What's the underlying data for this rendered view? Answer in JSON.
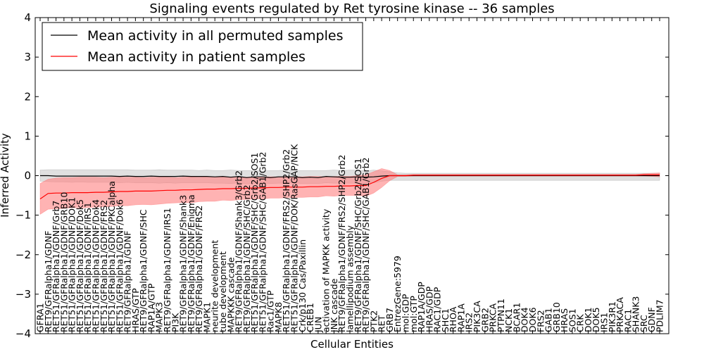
{
  "chart_data": {
    "type": "line",
    "title": "Signaling events regulated by Ret tyrosine kinase -- 36 samples",
    "xlabel": "Cellular Entities",
    "ylabel": "Inferred Activity",
    "ylim": [
      -4,
      4
    ],
    "yticks": [
      -4,
      -3,
      -2,
      -1,
      0,
      1,
      2,
      3,
      4
    ],
    "grid": false,
    "legend_position": "top-left",
    "categories": [
      "GFRA1",
      "RET9/GFRalpha1/GDNF",
      "RET51/GFRalpha1/GDNF/Grb7",
      "RET51/GFRalpha1/GDNF/GRB10",
      "RET51/GFRalpha1/GDNF/DOK1",
      "RET51/GFRalpha1/GDNF/Dok5",
      "RET51/GFRalpha1/GDNF/IRS1",
      "RET51/GFRalpha1/GDNF/Dok4",
      "RET51/GFRalpha1/GDNF/FRS2",
      "RET51/GFRalpha1/GDNF/PKCalpha",
      "RET51/GFRalpha1/GDNF/Dok6",
      "RET9/GFRalpha1/GDNF",
      "HRAS/GTP",
      "RET9/GFRalpha1/GDNF/SHC",
      "RAP1A/GTP",
      "MAPK3",
      "RET9/GFRalpha1/GDNF/IRS1",
      "PI3K",
      "RET9/GFRalpha1/GDNF/Shank3",
      "RET9/GFRalpha1/GDNF/Enigma",
      "RET9/GFRalpha1/GDNF/FRS2",
      "MAPK1",
      "neurite development",
      "tube development",
      "MAPKKK cascade",
      "RET9/GFRalpha1/GDNF/Shank3/Grb2",
      "RET9/GFRalpha1/GDNF/SHC/Grb2",
      "RET51/GFRalpha1/GDNF/SHC/Grb2/SOS1",
      "RET51/GFRalpha1/GDNF/SHC/GAB1/Grb2",
      "Rac1/GTP",
      "MAPK8",
      "RET51/GFRalpha1/GDNF/FRS2/SHP2/Grb2",
      "RET51/GFRalpha1/GDNF/DOK/RasGAP/NCK",
      "Crk/p130 Cas/Paxillin",
      "CREB1",
      "JUN",
      "activation of MAPKK activity",
      "JNK cascade",
      "RET9/GFRalpha1/GDNF/FRS2/SHP2/Grb2",
      "lamellipodium assembly",
      "RET9/GFRalpha1/GDNF/SHC/Grb2/SOS1",
      "RET9/GFRalpha1/GDNF/SHC/GAB1/Grb2",
      "PTK2",
      "RET",
      "GRB7",
      "EntrezGene:5979",
      "mol:GDP",
      "mol:GTP",
      "RAP1A/GDP",
      "HRAS/GDP",
      "RAC1/GDP",
      "SHC1",
      "RHOA",
      "RAP1A",
      "IRS2",
      "PIK3CA",
      "GRB2",
      "PRKCA",
      "PTPN11",
      "NCK1",
      "BCAR1",
      "DOK4",
      "DOK6",
      "FRS2",
      "GAB1",
      "GRB10",
      "HRAS",
      "SOS1",
      "CRK",
      "DOK1",
      "DOK5",
      "IRS1",
      "PIK3R1",
      "PRKACA",
      "RAC1",
      "SHANK3",
      "SRC",
      "GDNF",
      "PDLIM7"
    ],
    "series": [
      {
        "name": "Mean activity in all permuted samples",
        "color": "#000000",
        "band_color": "#bbbbbb",
        "values": [
          0.0,
          0.0,
          -0.01,
          -0.01,
          -0.01,
          -0.01,
          -0.01,
          -0.01,
          -0.01,
          -0.01,
          -0.02,
          -0.01,
          -0.02,
          -0.02,
          -0.01,
          -0.02,
          -0.02,
          -0.02,
          -0.01,
          -0.02,
          -0.02,
          -0.02,
          -0.03,
          -0.02,
          -0.04,
          -0.02,
          -0.05,
          -0.03,
          -0.03,
          -0.05,
          -0.03,
          -0.03,
          -0.03,
          -0.05,
          -0.04,
          -0.05,
          -0.02,
          -0.03,
          -0.04,
          -0.04,
          -0.03,
          -0.04,
          -0.03,
          -0.01,
          0.0,
          0.0,
          0.0,
          0.0,
          0.0,
          0.0,
          0.0,
          0.0,
          0.0,
          0.0,
          0.0,
          0.0,
          0.0,
          0.0,
          0.0,
          0.0,
          0.0,
          0.0,
          0.0,
          0.0,
          0.0,
          0.0,
          0.0,
          0.0,
          0.0,
          0.0,
          0.0,
          0.0,
          0.0,
          0.0,
          0.0,
          0.0,
          0.0,
          0.0,
          0.0
        ],
        "band_upper": [
          0.14,
          0.15,
          0.15,
          0.15,
          0.15,
          0.15,
          0.15,
          0.15,
          0.15,
          0.15,
          0.15,
          0.15,
          0.14,
          0.14,
          0.14,
          0.15,
          0.14,
          0.14,
          0.14,
          0.14,
          0.13,
          0.14,
          0.13,
          0.13,
          0.14,
          0.13,
          0.13,
          0.13,
          0.12,
          0.13,
          0.13,
          0.14,
          0.13,
          0.13,
          0.13,
          0.13,
          0.13,
          0.14,
          0.13,
          0.14,
          0.14,
          0.12,
          0.14,
          0.12,
          0.1,
          0.07,
          0.06,
          0.06,
          0.06,
          0.06,
          0.06,
          0.06,
          0.06,
          0.06,
          0.06,
          0.06,
          0.06,
          0.06,
          0.06,
          0.06,
          0.06,
          0.06,
          0.06,
          0.06,
          0.06,
          0.06,
          0.06,
          0.06,
          0.06,
          0.06,
          0.06,
          0.06,
          0.06,
          0.06,
          0.06,
          0.06,
          0.06,
          0.06,
          0.06
        ],
        "band_lower": [
          -0.14,
          -0.15,
          -0.16,
          -0.16,
          -0.17,
          -0.16,
          -0.17,
          -0.17,
          -0.17,
          -0.17,
          -0.18,
          -0.17,
          -0.18,
          -0.18,
          -0.18,
          -0.19,
          -0.18,
          -0.19,
          -0.18,
          -0.18,
          -0.18,
          -0.18,
          -0.19,
          -0.19,
          -0.2,
          -0.18,
          -0.21,
          -0.19,
          -0.19,
          -0.2,
          -0.19,
          -0.19,
          -0.19,
          -0.2,
          -0.2,
          -0.2,
          -0.18,
          -0.19,
          -0.19,
          -0.19,
          -0.19,
          -0.19,
          -0.18,
          -0.14,
          -0.12,
          -0.12,
          -0.12,
          -0.12,
          -0.12,
          -0.12,
          -0.12,
          -0.12,
          -0.12,
          -0.12,
          -0.12,
          -0.12,
          -0.12,
          -0.12,
          -0.12,
          -0.12,
          -0.12,
          -0.12,
          -0.12,
          -0.12,
          -0.12,
          -0.12,
          -0.12,
          -0.12,
          -0.12,
          -0.12,
          -0.12,
          -0.12,
          -0.12,
          -0.12,
          -0.12,
          -0.12,
          -0.12,
          -0.12,
          -0.12
        ]
      },
      {
        "name": "Mean activity in patient samples",
        "color": "#ff0000",
        "band_color": "#ff8080",
        "values": [
          -0.59,
          -0.45,
          -0.44,
          -0.44,
          -0.43,
          -0.43,
          -0.43,
          -0.42,
          -0.42,
          -0.41,
          -0.4,
          -0.4,
          -0.39,
          -0.39,
          -0.39,
          -0.38,
          -0.37,
          -0.37,
          -0.36,
          -0.36,
          -0.35,
          -0.34,
          -0.34,
          -0.33,
          -0.33,
          -0.32,
          -0.32,
          -0.31,
          -0.31,
          -0.3,
          -0.3,
          -0.29,
          -0.29,
          -0.29,
          -0.28,
          -0.28,
          -0.27,
          -0.27,
          -0.26,
          -0.26,
          -0.25,
          -0.25,
          -0.17,
          -0.07,
          0.0,
          0.0,
          0.0,
          0.01,
          0.01,
          0.01,
          0.01,
          0.01,
          0.01,
          0.01,
          0.01,
          0.01,
          0.01,
          0.01,
          0.01,
          0.01,
          0.01,
          0.01,
          0.01,
          0.01,
          0.01,
          0.01,
          0.01,
          0.01,
          0.01,
          0.01,
          0.01,
          0.01,
          0.01,
          0.01,
          0.01,
          0.01,
          0.02,
          0.02,
          0.02
        ],
        "band_upper": [
          -0.2,
          -0.09,
          -0.06,
          -0.05,
          -0.05,
          -0.04,
          -0.04,
          -0.04,
          -0.05,
          -0.04,
          -0.04,
          -0.04,
          -0.04,
          -0.05,
          -0.04,
          -0.04,
          -0.04,
          -0.05,
          -0.04,
          -0.03,
          -0.04,
          -0.03,
          -0.03,
          -0.04,
          -0.03,
          -0.03,
          -0.04,
          -0.03,
          -0.03,
          -0.03,
          -0.03,
          -0.02,
          -0.03,
          -0.03,
          -0.02,
          -0.02,
          -0.03,
          -0.02,
          -0.02,
          -0.02,
          0.0,
          0.02,
          0.1,
          0.18,
          0.13,
          0.02,
          0.02,
          0.03,
          0.03,
          0.03,
          0.03,
          0.03,
          0.03,
          0.03,
          0.03,
          0.03,
          0.03,
          0.03,
          0.03,
          0.03,
          0.03,
          0.03,
          0.03,
          0.03,
          0.03,
          0.03,
          0.03,
          0.03,
          0.03,
          0.03,
          0.03,
          0.03,
          0.03,
          0.03,
          0.03,
          0.03,
          0.05,
          0.06,
          0.07
        ],
        "band_lower": [
          -0.98,
          -0.85,
          -0.84,
          -0.83,
          -0.81,
          -0.82,
          -0.81,
          -0.8,
          -0.79,
          -0.78,
          -0.76,
          -0.76,
          -0.74,
          -0.73,
          -0.74,
          -0.72,
          -0.7,
          -0.69,
          -0.68,
          -0.69,
          -0.66,
          -0.65,
          -0.65,
          -0.62,
          -0.63,
          -0.61,
          -0.6,
          -0.59,
          -0.59,
          -0.57,
          -0.57,
          -0.56,
          -0.55,
          -0.55,
          -0.54,
          -0.54,
          -0.51,
          -0.52,
          -0.5,
          -0.5,
          -0.5,
          -0.52,
          -0.44,
          -0.3,
          -0.13,
          -0.02,
          -0.02,
          -0.01,
          -0.01,
          -0.01,
          -0.01,
          -0.01,
          -0.01,
          -0.01,
          -0.01,
          -0.01,
          -0.01,
          -0.01,
          -0.01,
          -0.01,
          -0.01,
          -0.01,
          -0.01,
          -0.01,
          -0.01,
          -0.01,
          -0.01,
          -0.01,
          -0.01,
          -0.01,
          -0.01,
          -0.01,
          -0.01,
          -0.01,
          -0.01,
          -0.01,
          -0.01,
          -0.02,
          -0.03
        ]
      }
    ]
  }
}
